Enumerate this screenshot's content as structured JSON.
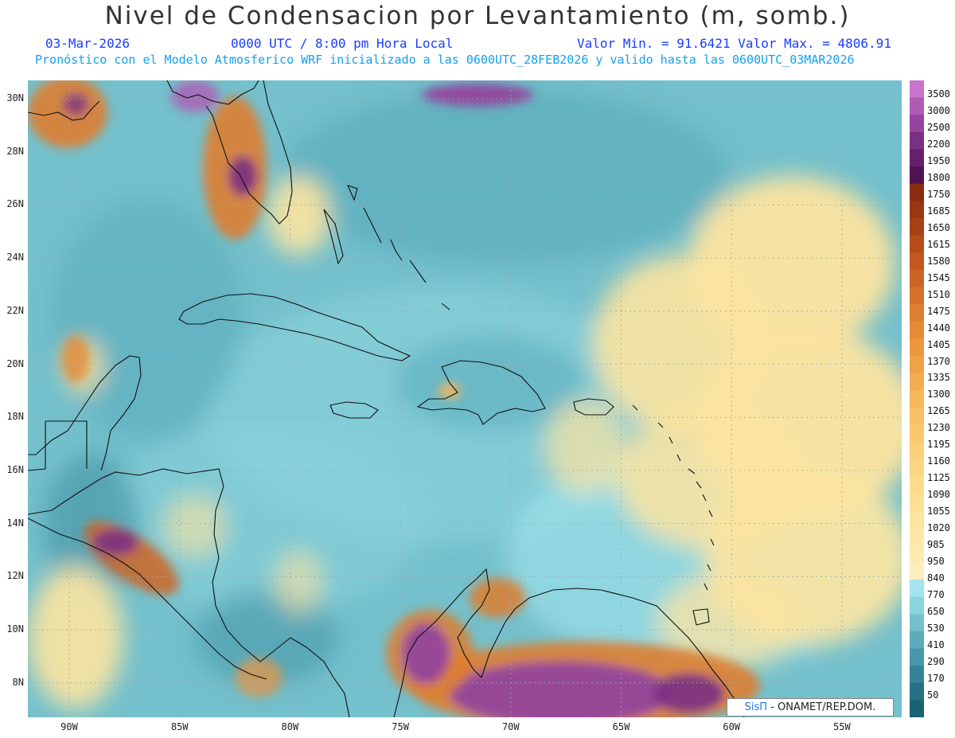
{
  "header": {
    "title": "Nivel de Condensacion por Levantamiento (m, somb.)",
    "date": "03-Mar-2026",
    "time": "0000 UTC / 8:00 pm Hora Local",
    "minmax": "Valor Min. = 91.6421  Valor Max. = 4806.91",
    "model_line": "Pronóstico con el Modelo Atmosferico WRF inicializado a las 0600UTC_28FEB2026 y valido hasta las  0600UTC_03MAR2026"
  },
  "axes": {
    "lat_labels": [
      "30N",
      "28N",
      "26N",
      "24N",
      "22N",
      "20N",
      "18N",
      "16N",
      "14N",
      "12N",
      "10N",
      "8N"
    ],
    "lon_labels": [
      "90W",
      "85W",
      "80W",
      "75W",
      "70W",
      "65W",
      "60W",
      "55W"
    ]
  },
  "colorbar": {
    "levels": [
      "3500",
      "3000",
      "2500",
      "2200",
      "1950",
      "1800",
      "1750",
      "1685",
      "1650",
      "1615",
      "1580",
      "1545",
      "1510",
      "1475",
      "1440",
      "1405",
      "1370",
      "1335",
      "1300",
      "1265",
      "1230",
      "1195",
      "1160",
      "1125",
      "1090",
      "1055",
      "1020",
      "985",
      "950",
      "840",
      "770",
      "650",
      "530",
      "410",
      "290",
      "170",
      "50"
    ],
    "colors": [
      "#c874c8",
      "#b05ab4",
      "#94449c",
      "#7a3084",
      "#64206c",
      "#4e1454",
      "#8a2c10",
      "#9a3612",
      "#a84016",
      "#b64c1a",
      "#c2581e",
      "#cc6424",
      "#d6702a",
      "#de7e30",
      "#e68a36",
      "#ec963e",
      "#f0a246",
      "#f4ac50",
      "#f6b65a",
      "#f8c064",
      "#f9c86e",
      "#fad078",
      "#fbd682",
      "#fcdc8c",
      "#fde096",
      "#fde4a0",
      "#fee8a8",
      "#fdeab0",
      "#fdeec0",
      "#a4e4ec",
      "#8cd4dc",
      "#74c0cc",
      "#5cacbc",
      "#4898aa",
      "#348498",
      "#267284",
      "#1a6272"
    ]
  },
  "credit": {
    "brand": "SisΠ",
    "text": "- ONAMET/REP.DOM."
  }
}
